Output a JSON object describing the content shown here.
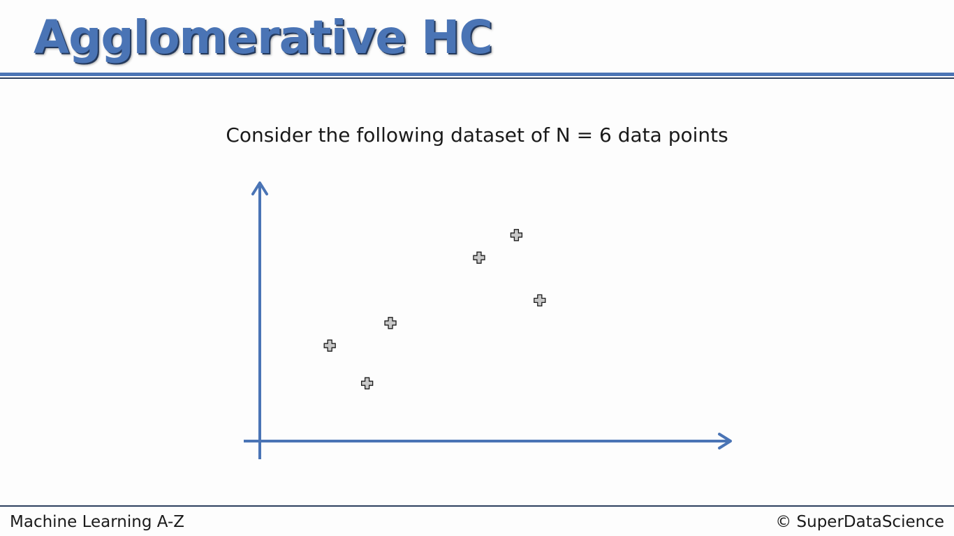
{
  "slide": {
    "title": "Agglomerative HC",
    "subtitle": "Consider the following dataset of N = 6 data points",
    "footer_left": "Machine Learning A-Z",
    "footer_right": "© SuperDataScience"
  },
  "colors": {
    "accent": "#4a74b5",
    "accent_dark": "#2c3f5e",
    "marker_fill": "#c8c8c8",
    "marker_stroke": "#1a1a1a",
    "text": "#1a1a1a"
  },
  "chart_data": {
    "type": "scatter",
    "title": "",
    "xlabel": "",
    "ylabel": "",
    "grid": false,
    "ticks": false,
    "xlim": [
      0,
      10
    ],
    "ylim": [
      0,
      10
    ],
    "marker": "plus",
    "points": [
      {
        "x": 1.5,
        "y": 3.8
      },
      {
        "x": 2.3,
        "y": 2.3
      },
      {
        "x": 2.8,
        "y": 4.7
      },
      {
        "x": 4.7,
        "y": 7.3
      },
      {
        "x": 5.5,
        "y": 8.2
      },
      {
        "x": 6.0,
        "y": 5.6
      }
    ]
  }
}
